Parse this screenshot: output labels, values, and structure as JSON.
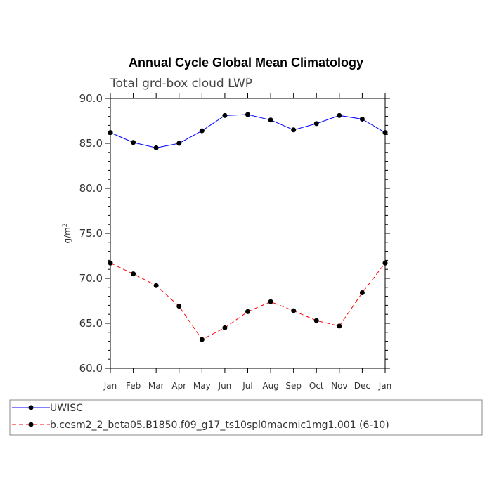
{
  "chart_data": {
    "type": "line",
    "title": "Annual Cycle Global Mean Climatology",
    "subtitle": "Total grd-box cloud LWP",
    "ylabel": "g/m",
    "ylabel_superscript": "2",
    "ylim": [
      60.0,
      90.0
    ],
    "yticks": [
      "90.0",
      "85.0",
      "80.0",
      "75.0",
      "70.0",
      "65.0",
      "60.0"
    ],
    "ytick_values": [
      90,
      85,
      80,
      75,
      70,
      65,
      60
    ],
    "categories": [
      "Jan",
      "Feb",
      "Mar",
      "Apr",
      "May",
      "Jun",
      "Jul",
      "Aug",
      "Sep",
      "Oct",
      "Nov",
      "Dec",
      "Jan"
    ],
    "series": [
      {
        "name": "UWISC",
        "color": "#0000ff",
        "dash": "solid",
        "values": [
          86.2,
          85.1,
          84.5,
          85.0,
          86.4,
          88.1,
          88.2,
          87.6,
          86.5,
          87.2,
          88.1,
          87.7,
          86.2
        ]
      },
      {
        "name": "b.cesm2_2_beta05.B1850.f09_g17_ts10spl0macmic1mg1.001 (6-10)",
        "color": "#ff0000",
        "dash": "dashed",
        "values": [
          71.7,
          70.5,
          69.2,
          66.9,
          63.2,
          64.5,
          66.3,
          67.4,
          66.4,
          65.3,
          64.7,
          68.4,
          71.7
        ]
      }
    ]
  }
}
